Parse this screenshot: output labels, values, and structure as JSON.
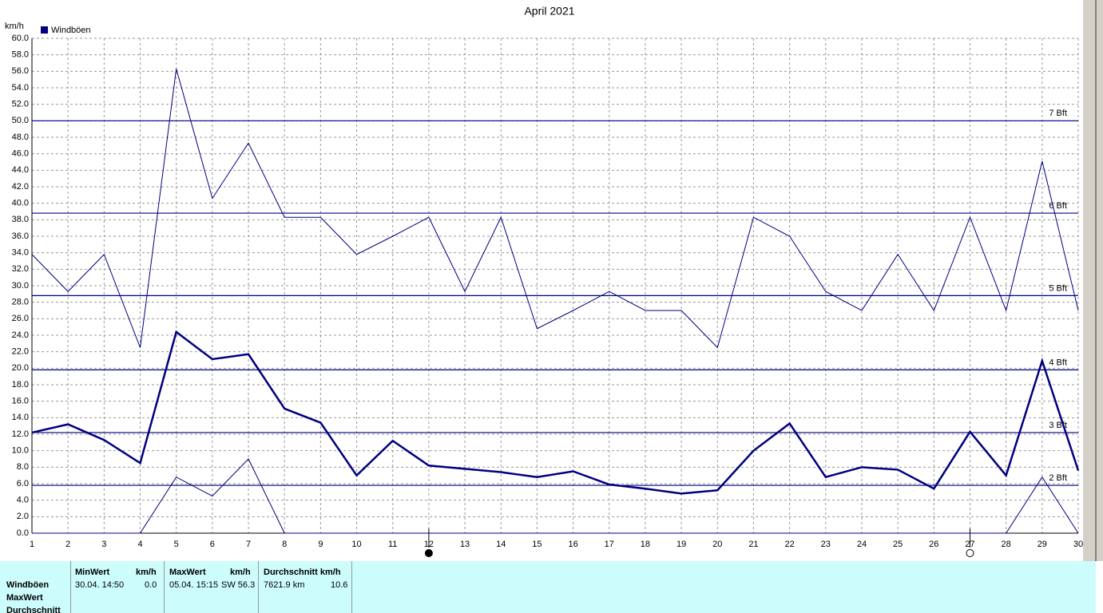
{
  "chart_data": {
    "type": "line",
    "title": "April 2021",
    "y_unit": "km/h",
    "legend": "Windböen",
    "color": "#000080",
    "x": [
      1,
      2,
      3,
      4,
      5,
      6,
      7,
      8,
      9,
      10,
      11,
      12,
      13,
      14,
      15,
      16,
      17,
      18,
      19,
      20,
      21,
      22,
      23,
      24,
      25,
      26,
      27,
      28,
      29,
      30
    ],
    "xlim": [
      1,
      30
    ],
    "xticks": [
      1,
      2,
      3,
      4,
      5,
      6,
      7,
      8,
      9,
      10,
      11,
      12,
      13,
      14,
      15,
      16,
      17,
      18,
      19,
      20,
      21,
      22,
      23,
      24,
      25,
      26,
      27,
      28,
      29,
      30
    ],
    "ylim": [
      0,
      60
    ],
    "yticks": [
      {
        "value": 0,
        "label": "0.0"
      },
      {
        "value": 2,
        "label": "2.0"
      },
      {
        "value": 4,
        "label": "4.0"
      },
      {
        "value": 6,
        "label": "6.0"
      },
      {
        "value": 8,
        "label": "8.0"
      },
      {
        "value": 10,
        "label": "10.0"
      },
      {
        "value": 12,
        "label": "12.0"
      },
      {
        "value": 14,
        "label": "14.0"
      },
      {
        "value": 16,
        "label": "16.0"
      },
      {
        "value": 18,
        "label": "18.0"
      },
      {
        "value": 20,
        "label": "20.0"
      },
      {
        "value": 22,
        "label": "22.0"
      },
      {
        "value": 24,
        "label": "24.0"
      },
      {
        "value": 26,
        "label": "26.0"
      },
      {
        "value": 28,
        "label": "28.0"
      },
      {
        "value": 30,
        "label": "30.0"
      },
      {
        "value": 32,
        "label": "32.0"
      },
      {
        "value": 34,
        "label": "34.0"
      },
      {
        "value": 36,
        "label": "36.0"
      },
      {
        "value": 38,
        "label": "38.0"
      },
      {
        "value": 40,
        "label": "40.0"
      },
      {
        "value": 42,
        "label": "42.0"
      },
      {
        "value": 44,
        "label": "44.0"
      },
      {
        "value": 46,
        "label": "46.0"
      },
      {
        "value": 48,
        "label": "48.0"
      },
      {
        "value": 50,
        "label": "50.0"
      },
      {
        "value": 52,
        "label": "52.0"
      },
      {
        "value": 54,
        "label": "54.0"
      },
      {
        "value": 56,
        "label": "56.0"
      },
      {
        "value": 58,
        "label": "58.0"
      },
      {
        "value": 60,
        "label": "60.0"
      }
    ],
    "grid": true,
    "series": [
      {
        "color": "#000080",
        "width": 1,
        "values": [
          33.8,
          29.3,
          33.8,
          22.5,
          56.3,
          40.6,
          47.3,
          38.3,
          38.3,
          33.8,
          36.0,
          38.3,
          29.3,
          38.3,
          24.8,
          27.0,
          29.3,
          27.0,
          27.0,
          22.5,
          38.3,
          36.0,
          29.3,
          27.0,
          33.8,
          27.0,
          38.3,
          27.0,
          45.1,
          27.0
        ]
      },
      {
        "color": "#000080",
        "width": 2.5,
        "values": [
          12.2,
          13.2,
          11.3,
          8.5,
          24.4,
          21.1,
          21.7,
          15.1,
          13.4,
          7.0,
          11.2,
          8.2,
          7.8,
          7.4,
          6.8,
          7.5,
          5.9,
          5.4,
          4.8,
          5.2,
          10.0,
          13.3,
          6.8,
          8.0,
          7.7,
          5.4,
          12.3,
          7.0,
          20.9,
          7.6
        ]
      },
      {
        "color": "#000080",
        "width": 1,
        "values": [
          0,
          0,
          0,
          0,
          6.8,
          4.5,
          9.0,
          0,
          0,
          0,
          0,
          0,
          0,
          0,
          0,
          0,
          0,
          0,
          0,
          0,
          0,
          0,
          0,
          0,
          0,
          0,
          0,
          0,
          6.8,
          0
        ]
      }
    ],
    "bft_lines": [
      {
        "value": 50,
        "label": "7 Bft"
      },
      {
        "value": 38.8,
        "label": "6 Bft"
      },
      {
        "value": 28.8,
        "label": "5 Bft"
      },
      {
        "value": 19.8,
        "label": "4 Bft"
      },
      {
        "value": 12.2,
        "label": "3 Bft"
      },
      {
        "value": 5.8,
        "label": "2 Bft"
      }
    ],
    "moon_markers": [
      {
        "day": 12,
        "filled": true
      },
      {
        "day": 27,
        "filled": false
      }
    ]
  },
  "table": {
    "row_labels": [
      "Windböen",
      "MaxWert",
      "Durchschnitt"
    ],
    "columns": [
      {
        "header": "MinWert",
        "unit": "km/h",
        "when": "30.04.  14:50",
        "value": "0.0"
      },
      {
        "header": "MaxWert",
        "unit": "km/h",
        "when": "05.04.  15:15",
        "value": "SW 56.3"
      },
      {
        "header": "Durchschnitt km/h",
        "unit": "",
        "when": "7621.9 km",
        "value": "10.6"
      }
    ]
  }
}
